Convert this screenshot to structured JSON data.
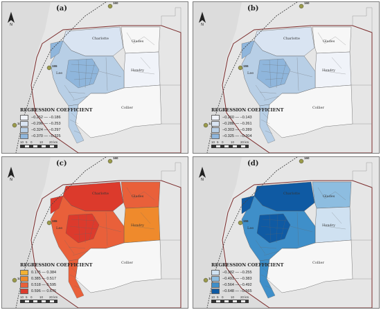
{
  "panels": [
    {
      "label": "(a)",
      "legend_title": "REGRESSION COEFFICIENT",
      "legend": [
        {
          "text": "−0.252 — −0.186",
          "color": "#f0f3f9"
        },
        {
          "text": "−0.296 — −0.253",
          "color": "#d9e4f2"
        },
        {
          "text": "−0.324 — −0.297",
          "color": "#b8cfe6"
        },
        {
          "text": "−0.370 — −0.325",
          "color": "#8fb6dc"
        }
      ],
      "region_colors": {
        "charlotte": "#d9e4f2",
        "glades": "#f7f7f7",
        "hendry": "#f0f3f9",
        "collier": "#f7f7f7",
        "lee": "#b8cfe6",
        "lee_dark": "#8fb6dc"
      }
    },
    {
      "label": "(b)",
      "legend_title": "REGRESSION COEFFICIENT",
      "legend": [
        {
          "text": "−0.260 — −0.143",
          "color": "#f0f3f9"
        },
        {
          "text": "−0.288 — −0.261",
          "color": "#d9e4f2"
        },
        {
          "text": "−0.303 — −0.289",
          "color": "#b8cfe6"
        },
        {
          "text": "−0.325 — −0.304",
          "color": "#8fb6dc"
        }
      ],
      "region_colors": {
        "charlotte": "#d9e4f2",
        "glades": "#f7f7f7",
        "hendry": "#f0f3f9",
        "collier": "#f7f7f7",
        "lee": "#b8cfe6",
        "lee_dark": "#8fb6dc"
      }
    },
    {
      "label": "(c)",
      "legend_title": "REGRESSION COEFFICIENT",
      "legend": [
        {
          "text": "0.175 — 0.384",
          "color": "#f2b134"
        },
        {
          "text": "0.385 — 0.517",
          "color": "#ef8a2c"
        },
        {
          "text": "0.518 — 0.595",
          "color": "#e9603a"
        },
        {
          "text": "0.596 — 0.676",
          "color": "#dc3a2c"
        }
      ],
      "region_colors": {
        "charlotte": "#dc3a2c",
        "glades": "#e9603a",
        "hendry": "#ef8a2c",
        "collier": "#f7f7f7",
        "lee": "#e9603a",
        "lee_dark": "#dc3a2c"
      }
    },
    {
      "label": "(d)",
      "legend_title": "REGRESSION COEFFICIENT",
      "legend": [
        {
          "text": "−0.382 — −0.255",
          "color": "#cfe1f1"
        },
        {
          "text": "−0.491 — −0.383",
          "color": "#8dbde0"
        },
        {
          "text": "−0.564 — −0.492",
          "color": "#3f8fc9"
        },
        {
          "text": "−0.648 — −0.565",
          "color": "#0f5aa3"
        }
      ],
      "region_colors": {
        "charlotte": "#0f5aa3",
        "glades": "#8dbde0",
        "hendry": "#cfe1f1",
        "collier": "#f7f7f7",
        "lee": "#3f8fc9",
        "lee_dark": "#0f5aa3"
      }
    }
  ],
  "places": {
    "charlotte": "Charlotte",
    "glades": "Glades",
    "hendry": "Hendry",
    "collier": "Collier",
    "lee": "Lee"
  },
  "highways": {
    "north": "160",
    "mid": "155",
    "south": "140"
  },
  "scale_labels": [
    "10",
    "5",
    "0",
    "10",
    "20 km"
  ]
}
